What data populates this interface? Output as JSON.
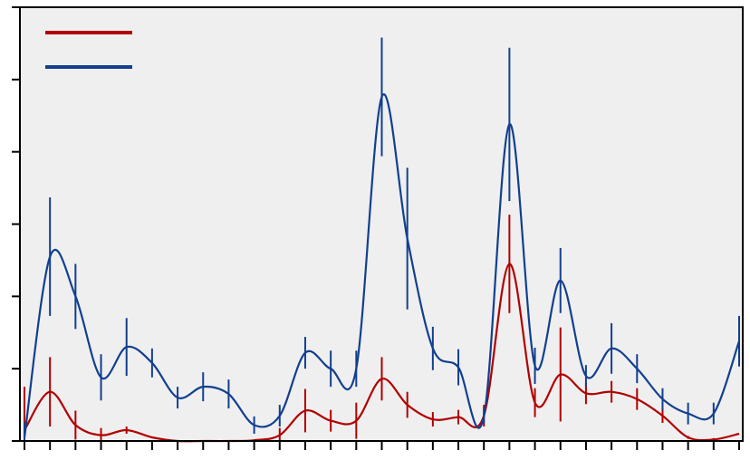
{
  "chart_data": {
    "type": "line",
    "title": "",
    "xlabel": "",
    "ylabel": "",
    "grid": false,
    "legend_position": "top-left",
    "xlim": [
      0,
      28
    ],
    "ylim": [
      0,
      6
    ],
    "error_bars": true,
    "x": [
      0,
      1,
      2,
      3,
      4,
      5,
      6,
      7,
      8,
      9,
      10,
      11,
      12,
      13,
      14,
      15,
      16,
      17,
      18,
      19,
      20,
      21,
      22,
      23,
      24,
      25,
      26,
      27,
      28
    ],
    "series": [
      {
        "color": "#b10000",
        "values": [
          0.15,
          0.68,
          0.22,
          0.08,
          0.15,
          0.05,
          0.0,
          0.0,
          0.0,
          0.01,
          0.08,
          0.42,
          0.28,
          0.28,
          0.86,
          0.5,
          0.3,
          0.33,
          0.35,
          2.45,
          0.53,
          0.92,
          0.66,
          0.68,
          0.58,
          0.35,
          0.05,
          0.02,
          0.1
        ],
        "errors": [
          0.6,
          0.48,
          0.2,
          0.1,
          0.05,
          0.0,
          0.0,
          0.0,
          0.0,
          0.0,
          0.1,
          0.3,
          0.15,
          0.25,
          0.3,
          0.18,
          0.1,
          0.1,
          0.15,
          0.68,
          0.2,
          0.65,
          0.15,
          0.15,
          0.15,
          0.1,
          0.02,
          0.02,
          0.0
        ]
      },
      {
        "color": "#123f8f",
        "values": [
          0.05,
          2.55,
          2.0,
          0.88,
          1.3,
          1.08,
          0.6,
          0.75,
          0.65,
          0.22,
          0.35,
          1.22,
          1.0,
          1.0,
          4.76,
          2.8,
          1.28,
          1.02,
          0.34,
          4.38,
          1.04,
          2.22,
          0.9,
          1.28,
          1.0,
          0.58,
          0.38,
          0.38,
          1.38
        ],
        "errors": [
          0.2,
          0.82,
          0.45,
          0.32,
          0.4,
          0.2,
          0.15,
          0.2,
          0.2,
          0.12,
          0.15,
          0.22,
          0.25,
          0.25,
          0.82,
          0.98,
          0.3,
          0.25,
          0.1,
          1.06,
          0.25,
          0.45,
          0.15,
          0.35,
          0.2,
          0.15,
          0.15,
          0.15,
          0.35
        ]
      }
    ]
  }
}
